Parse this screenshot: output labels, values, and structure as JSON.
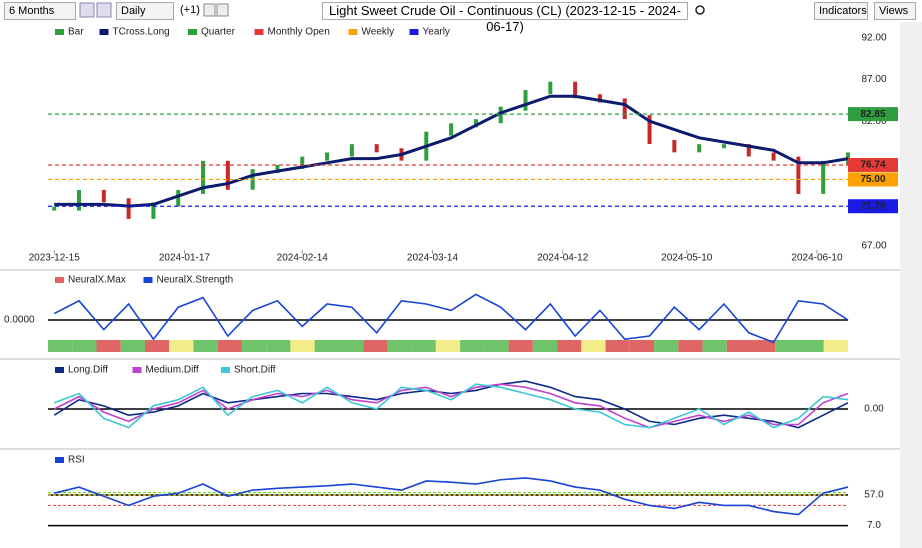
{
  "toolbar": {
    "period": "6 Months",
    "interval": "Daily",
    "offset": "(+1)",
    "title": "Light Sweet Crude Oil - Continuous (CL) (2023-12-15 - 2024-06-17)",
    "indicators": "Indicators",
    "views": "Views"
  },
  "chart_data": [
    {
      "type": "bar",
      "xlim": [
        -1,
        128
      ],
      "ylim": [
        67,
        92
      ],
      "yticks": [
        {
          "value": 67,
          "label": "67.00"
        },
        {
          "value": 72,
          "label": "72.00"
        },
        {
          "value": 77,
          "label": "77.00"
        },
        {
          "value": 82,
          "label": "82.00"
        },
        {
          "value": 87,
          "label": "87.00"
        },
        {
          "value": 92,
          "label": "92.00"
        }
      ],
      "xticks": [
        {
          "value": 0,
          "label": "2023-12-15"
        },
        {
          "value": 21,
          "label": "2024-01-17"
        },
        {
          "value": 40,
          "label": "2024-02-14"
        },
        {
          "value": 61,
          "label": "2024-03-14"
        },
        {
          "value": 82,
          "label": "2024-04-12"
        },
        {
          "value": 102,
          "label": "2024-05-10"
        },
        {
          "value": 123,
          "label": "2024-06-10"
        }
      ],
      "x": [
        0,
        4,
        8,
        12,
        16,
        20,
        24,
        28,
        32,
        36,
        40,
        44,
        48,
        52,
        56,
        60,
        64,
        68,
        72,
        76,
        80,
        84,
        88,
        92,
        96,
        100,
        104,
        108,
        112,
        116,
        120,
        124,
        128
      ],
      "series": [
        {
          "name": "Bar",
          "style": "bar",
          "colors": [
            "#2e9e3e",
            "#c62828"
          ],
          "values": [
            71.5,
            73.5,
            72.5,
            70.5,
            72,
            73.5,
            77,
            74,
            76,
            76.5,
            77.5,
            78,
            79,
            78.5,
            77.5,
            80.5,
            81.5,
            82,
            83.5,
            85.5,
            86.5,
            85,
            84.5,
            82.5,
            79.5,
            78.5,
            79,
            79,
            78,
            77.5,
            73.5,
            77,
            78
          ]
        },
        {
          "name": "TCross.Long",
          "style": "line",
          "color": "#0d1b6e",
          "values": [
            72,
            72,
            72,
            71.8,
            72,
            73,
            74,
            74.5,
            75.5,
            76,
            76.5,
            77,
            77.5,
            77.5,
            78,
            79,
            80,
            81.5,
            83,
            84,
            85,
            85,
            84.5,
            84,
            82,
            81,
            80,
            79.5,
            79,
            78.5,
            77,
            77,
            77.5
          ]
        },
        {
          "name": "Quarter",
          "style": "level",
          "color": "#2e9e3e",
          "value": 82.85
        },
        {
          "name": "Monthly Open",
          "style": "level",
          "color": "#e53935",
          "value": 76.74
        },
        {
          "name": "Weekly",
          "style": "level",
          "color": "#ffa000",
          "value": 75,
          "value_label": "75.00"
        },
        {
          "name": "Yearly",
          "style": "level",
          "color": "#1a1ae6",
          "value": 71.78
        }
      ]
    },
    {
      "type": "line",
      "xlim": [
        -1,
        128
      ],
      "ylim": [
        -1,
        1
      ],
      "tick_side": "left",
      "yticks": [
        {
          "value": 0,
          "label": "0.0000"
        }
      ],
      "x": [
        0,
        4,
        8,
        12,
        16,
        20,
        24,
        28,
        32,
        36,
        40,
        44,
        48,
        52,
        56,
        60,
        64,
        68,
        72,
        76,
        80,
        84,
        88,
        92,
        96,
        100,
        104,
        108,
        112,
        116,
        120,
        124,
        128
      ],
      "series": [
        {
          "name": "NeuralX.Max",
          "style": "strip",
          "colors": [
            "#e06666",
            "#f3ec8a",
            "#6fc36a"
          ],
          "values": [
            1,
            1,
            -1,
            1,
            -1,
            0,
            1,
            -1,
            1,
            1,
            0,
            1,
            1,
            -1,
            1,
            1,
            0,
            1,
            1,
            -1,
            1,
            -1,
            0,
            -1,
            -1,
            1,
            -1,
            1,
            -1,
            -1,
            1,
            1,
            0
          ]
        },
        {
          "name": "NeuralX.Strength",
          "style": "line",
          "color": "#1844d6",
          "values": [
            0.2,
            0.6,
            -0.3,
            0.5,
            -0.6,
            0.4,
            0.7,
            -0.5,
            0.3,
            0.6,
            -0.2,
            0.5,
            0.4,
            -0.4,
            0.6,
            0.5,
            0.3,
            0.8,
            0.4,
            -0.3,
            0.5,
            -0.5,
            0.3,
            -0.6,
            -0.5,
            0.4,
            -0.3,
            0.5,
            -0.4,
            -0.7,
            0.6,
            0.5,
            0
          ]
        }
      ]
    },
    {
      "type": "line",
      "xlim": [
        -1,
        128
      ],
      "ylim": [
        -1,
        1
      ],
      "yticks": [
        {
          "value": 0,
          "label": "0.00"
        }
      ],
      "x": [
        0,
        4,
        8,
        12,
        16,
        20,
        24,
        28,
        32,
        36,
        40,
        44,
        48,
        52,
        56,
        60,
        64,
        68,
        72,
        76,
        80,
        84,
        88,
        92,
        96,
        100,
        104,
        108,
        112,
        116,
        120,
        124,
        128
      ],
      "series": [
        {
          "name": "Long.Diff",
          "style": "line",
          "color": "#0d2a8a",
          "values": [
            -0.2,
            0.3,
            0.1,
            -0.2,
            -0.1,
            0.1,
            0.5,
            0.2,
            0.3,
            0.4,
            0.5,
            0.5,
            0.4,
            0.3,
            0.5,
            0.6,
            0.5,
            0.6,
            0.8,
            0.9,
            0.7,
            0.4,
            0.3,
            0,
            -0.4,
            -0.5,
            -0.3,
            -0.2,
            -0.3,
            -0.4,
            -0.6,
            -0.2,
            0.2
          ]
        },
        {
          "name": "Medium.Diff",
          "style": "line",
          "color": "#c040d0",
          "values": [
            0,
            0.4,
            -0.1,
            -0.4,
            0,
            0.2,
            0.6,
            0,
            0.3,
            0.5,
            0.4,
            0.6,
            0.3,
            0.2,
            0.6,
            0.7,
            0.4,
            0.7,
            0.8,
            0.7,
            0.5,
            0.2,
            0.1,
            -0.3,
            -0.6,
            -0.4,
            -0.2,
            -0.4,
            -0.2,
            -0.5,
            -0.5,
            0.2,
            0.5
          ]
        },
        {
          "name": "Short.Diff",
          "style": "line",
          "color": "#3cc8d8",
          "values": [
            0.2,
            0.5,
            -0.3,
            -0.6,
            0.1,
            0.3,
            0.7,
            -0.2,
            0.4,
            0.6,
            0.2,
            0.7,
            0.2,
            0,
            0.7,
            0.6,
            0.3,
            0.8,
            0.7,
            0.5,
            0.3,
            0,
            -0.1,
            -0.5,
            -0.6,
            -0.3,
            0,
            -0.5,
            -0.1,
            -0.6,
            -0.3,
            0.4,
            0.3
          ]
        }
      ]
    },
    {
      "type": "line",
      "xlim": [
        -1,
        128
      ],
      "ylim": [
        -10,
        111
      ],
      "yticks": [
        {
          "value": 7,
          "label": "7.0"
        },
        {
          "value": 57,
          "label": "57.0"
        }
      ],
      "levels": [
        {
          "value": 61,
          "color": "#55d400"
        },
        {
          "value": 57,
          "color": "#e6d000"
        },
        {
          "value": 40,
          "color": "#e53935"
        }
      ],
      "x": [
        0,
        4,
        8,
        12,
        16,
        20,
        24,
        28,
        32,
        36,
        40,
        44,
        48,
        52,
        56,
        60,
        64,
        68,
        72,
        76,
        80,
        84,
        88,
        92,
        96,
        100,
        104,
        108,
        112,
        116,
        120,
        124,
        128
      ],
      "series": [
        {
          "name": "RSI",
          "style": "line",
          "color": "#1844d6",
          "values": [
            60,
            70,
            55,
            40,
            55,
            60,
            75,
            55,
            65,
            68,
            70,
            72,
            75,
            70,
            65,
            80,
            78,
            75,
            82,
            85,
            80,
            70,
            65,
            50,
            40,
            35,
            45,
            40,
            40,
            30,
            25,
            60,
            70
          ]
        }
      ]
    }
  ]
}
